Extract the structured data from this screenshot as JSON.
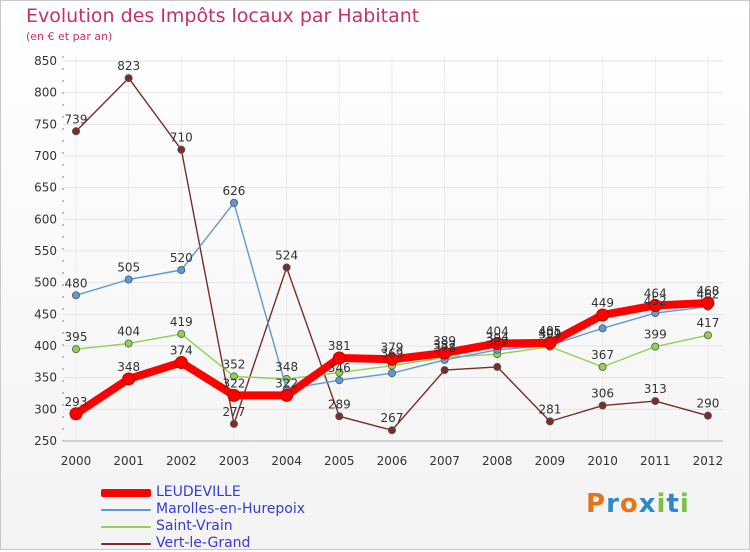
{
  "header": {
    "title": "Evolution des Impôts locaux par Habitant",
    "subtitle": "(en € et par an)"
  },
  "logo": {
    "text": "Proxiti",
    "colors": [
      "#e8731a",
      "#2f89c8",
      "#e8731a",
      "#2f89c8",
      "#7cc142",
      "#2f89c8",
      "#7cc142"
    ]
  },
  "chart_data": {
    "type": "line",
    "title": "Evolution des Impôts locaux par Habitant",
    "subtitle": "(en € et par an)",
    "xlabel": "",
    "ylabel": "",
    "categories": [
      "2000",
      "2001",
      "2002",
      "2003",
      "2004",
      "2005",
      "2006",
      "2007",
      "2008",
      "2009",
      "2010",
      "2011",
      "2012"
    ],
    "ylim": [
      250,
      850
    ],
    "yticks": [
      250,
      300,
      350,
      400,
      450,
      500,
      550,
      600,
      650,
      700,
      750,
      800,
      850
    ],
    "grid": true,
    "legend_position": "bottom-left",
    "series": [
      {
        "name": "LEUDEVILLE",
        "color": "#ff0000",
        "values": [
          293,
          348,
          374,
          322,
          322,
          381,
          379,
          389,
          404,
          405,
          449,
          464,
          468
        ],
        "labels": [
          "293",
          "348",
          "374",
          "322",
          "322",
          "381",
          "379",
          "389",
          "404",
          "405",
          "449",
          "464",
          "468"
        ]
      },
      {
        "name": "Marolles-en-Hurepoix",
        "color": "#5b9bd5",
        "values": [
          480,
          505,
          520,
          626,
          332,
          346,
          357,
          378,
          394,
          401,
          428,
          452,
          462
        ],
        "labels": [
          "480",
          "505",
          "520",
          "626",
          "",
          "346",
          "",
          "378",
          "394",
          "401",
          "",
          "452",
          "462"
        ]
      },
      {
        "name": "Saint-Vrain",
        "color": "#92d050",
        "values": [
          395,
          404,
          419,
          352,
          348,
          358,
          369,
          382,
          387,
          399,
          367,
          399,
          417
        ],
        "labels": [
          "395",
          "404",
          "419",
          "352",
          "348",
          "",
          "369",
          "382",
          "387",
          "399",
          "367",
          "399",
          "417"
        ]
      },
      {
        "name": "Vert-le-Grand",
        "color": "#7b2c2c",
        "values": [
          739,
          823,
          710,
          277,
          524,
          289,
          267,
          362,
          367,
          281,
          306,
          313,
          290
        ],
        "labels": [
          "739",
          "823",
          "710",
          "277",
          "524",
          "289",
          "267",
          "",
          "",
          "281",
          "306",
          "313",
          "290"
        ]
      }
    ]
  }
}
